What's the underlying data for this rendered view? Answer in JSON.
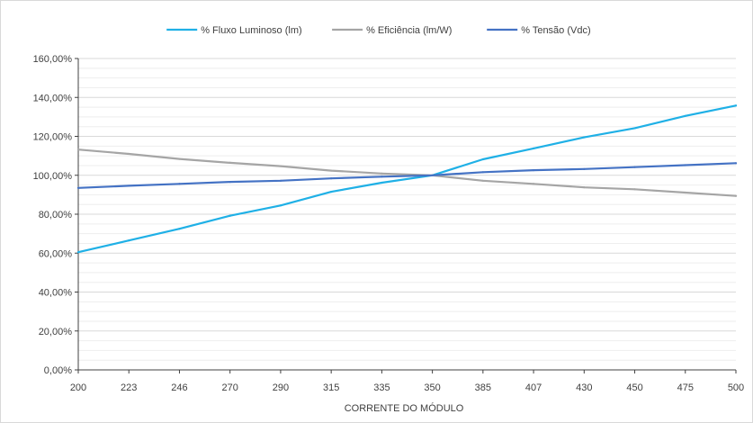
{
  "chart_data": {
    "type": "line",
    "title": "",
    "xlabel": "CORRENTE DO MÓDULO",
    "ylabel": "",
    "categories": [
      "200",
      "223",
      "246",
      "270",
      "290",
      "315",
      "335",
      "350",
      "385",
      "407",
      "430",
      "450",
      "475",
      "500"
    ],
    "ylim": [
      0,
      160
    ],
    "yticks": [
      "0,00%",
      "20,00%",
      "40,00%",
      "60,00%",
      "80,00%",
      "100,00%",
      "120,00%",
      "140,00%",
      "160,00%"
    ],
    "legend_position": "top",
    "grid": true,
    "series": [
      {
        "name": "% Fluxo Luminoso (lm)",
        "color": "#1fb0e6",
        "values": [
          60.5,
          66.5,
          72.5,
          79.2,
          84.5,
          91.5,
          96.2,
          100.0,
          108.2,
          113.8,
          119.5,
          124.2,
          130.5,
          135.8
        ]
      },
      {
        "name": "% Eficiência (lm/W)",
        "color": "#a5a5a5",
        "values": [
          113.2,
          111.0,
          108.4,
          106.4,
          104.7,
          102.4,
          100.9,
          100.0,
          97.2,
          95.6,
          93.8,
          92.8,
          91.1,
          89.4
        ]
      },
      {
        "name": "% Tensão (Vdc)",
        "color": "#4472c4",
        "values": [
          93.5,
          94.6,
          95.6,
          96.6,
          97.2,
          98.4,
          99.3,
          100.0,
          101.6,
          102.6,
          103.2,
          104.2,
          105.2,
          106.2
        ]
      }
    ]
  }
}
